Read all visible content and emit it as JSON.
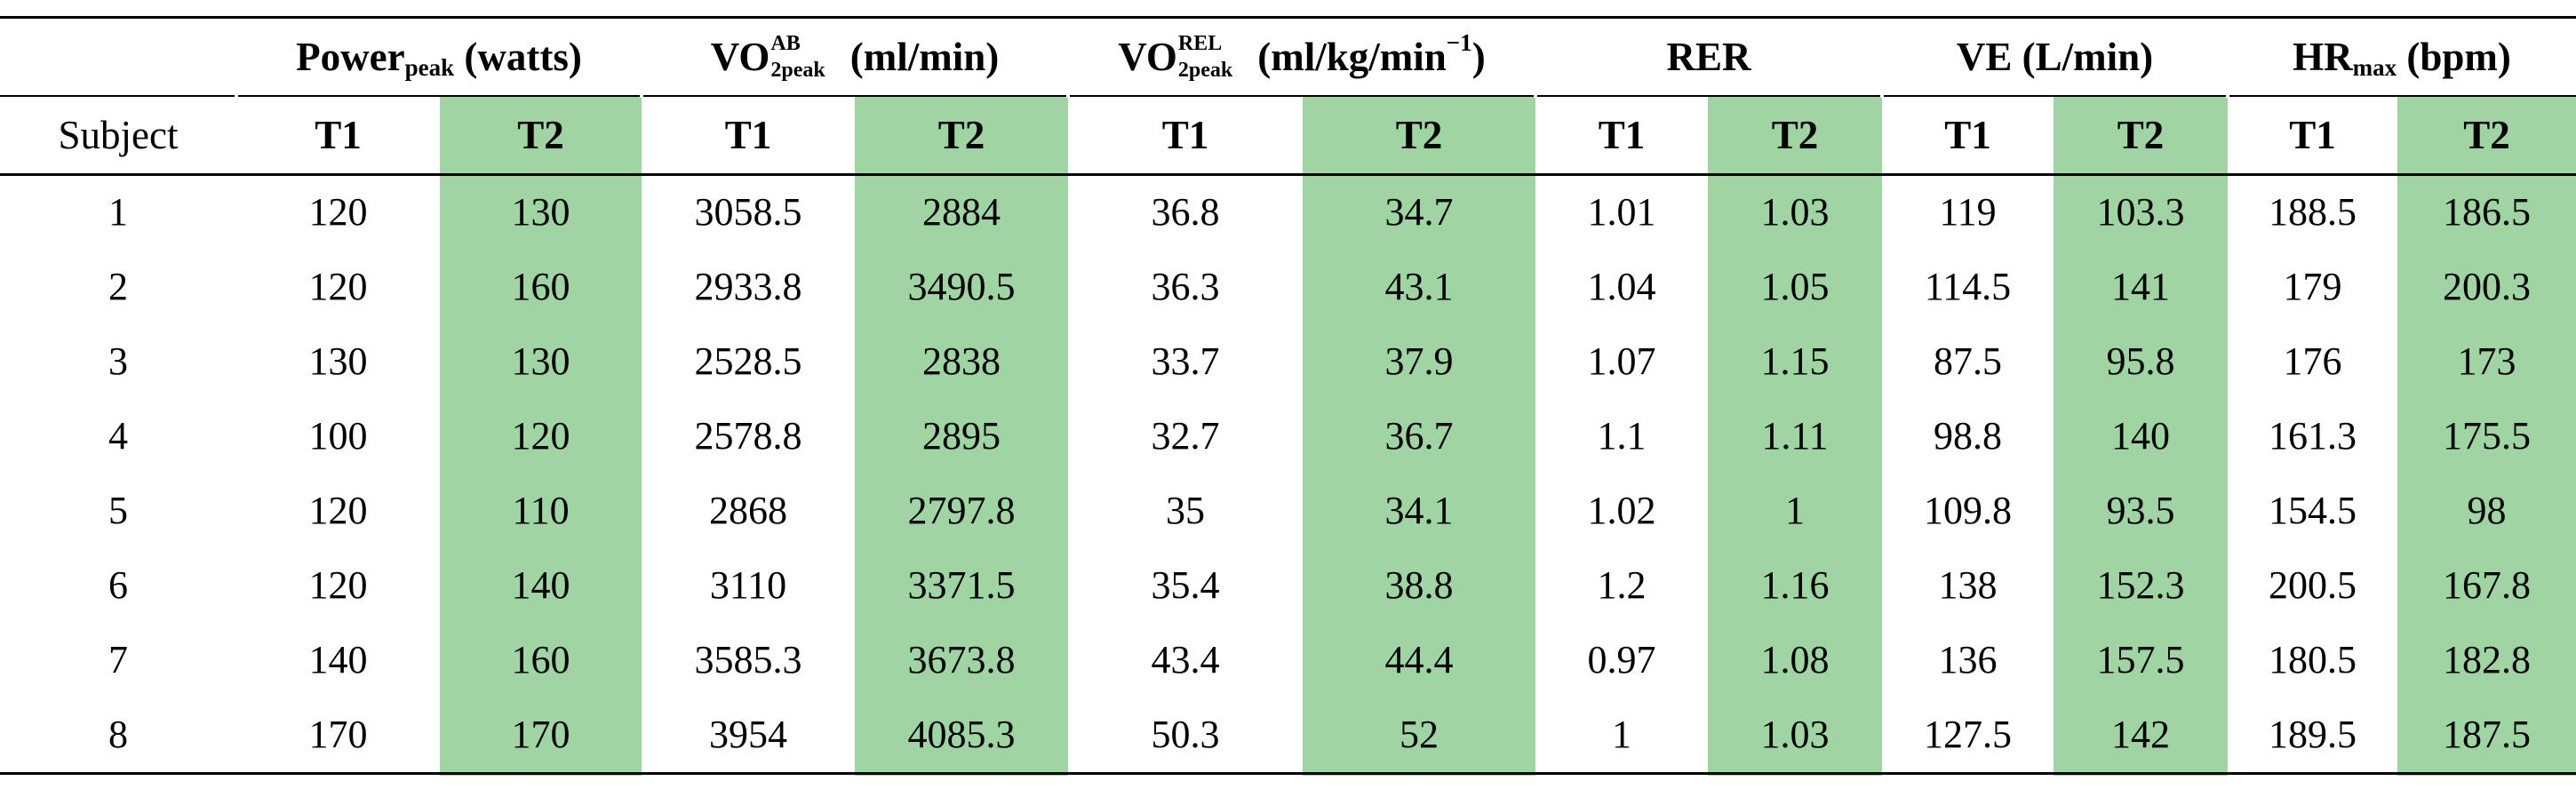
{
  "headers": {
    "power": {
      "main": "Power",
      "sub": "peak",
      "unit": " (watts)"
    },
    "vo_ab": {
      "main": "VO",
      "sup": "AB",
      "sub": "2peak",
      "unit": "(ml/min)"
    },
    "vo_rel": {
      "main": "VO",
      "sup": "REL",
      "sub": "2peak",
      "unit": "(ml/kg/min",
      "unit_sup": "−1",
      "unit_close": ")"
    },
    "rer": "RER",
    "ve": "VE (L/min)",
    "hr": {
      "main": "HR",
      "sub": "max",
      "unit": " (bpm)"
    }
  },
  "subheaders": {
    "subject": "Subject",
    "cols": [
      "T1",
      "T2",
      "T1",
      "T2",
      "T1",
      "T2",
      "T1",
      "T2",
      "T1",
      "T2",
      "T1",
      "T2"
    ]
  },
  "rows": [
    [
      "1",
      "120",
      "130",
      "3058.5",
      "2884",
      "36.8",
      "34.7",
      "1.01",
      "1.03",
      "119",
      "103.3",
      "188.5",
      "186.5"
    ],
    [
      "2",
      "120",
      "160",
      "2933.8",
      "3490.5",
      "36.3",
      "43.1",
      "1.04",
      "1.05",
      "114.5",
      "141",
      "179",
      "200.3"
    ],
    [
      "3",
      "130",
      "130",
      "2528.5",
      "2838",
      "33.7",
      "37.9",
      "1.07",
      "1.15",
      "87.5",
      "95.8",
      "176",
      "173"
    ],
    [
      "4",
      "100",
      "120",
      "2578.8",
      "2895",
      "32.7",
      "36.7",
      "1.1",
      "1.11",
      "98.8",
      "140",
      "161.3",
      "175.5"
    ],
    [
      "5",
      "120",
      "110",
      "2868",
      "2797.8",
      "35",
      "34.1",
      "1.02",
      "1",
      "109.8",
      "93.5",
      "154.5",
      "98"
    ],
    [
      "6",
      "120",
      "140",
      "3110",
      "3371.5",
      "35.4",
      "38.8",
      "1.2",
      "1.16",
      "138",
      "152.3",
      "200.5",
      "167.8"
    ],
    [
      "7",
      "140",
      "160",
      "3585.3",
      "3673.8",
      "43.4",
      "44.4",
      "0.97",
      "1.08",
      "136",
      "157.5",
      "180.5",
      "182.8"
    ],
    [
      "8",
      "170",
      "170",
      "3954",
      "4085.3",
      "50.3",
      "52",
      "1",
      "1.03",
      "127.5",
      "142",
      "189.5",
      "187.5"
    ]
  ],
  "colors": {
    "highlight": "#9fd4a3",
    "rule": "#000000"
  }
}
